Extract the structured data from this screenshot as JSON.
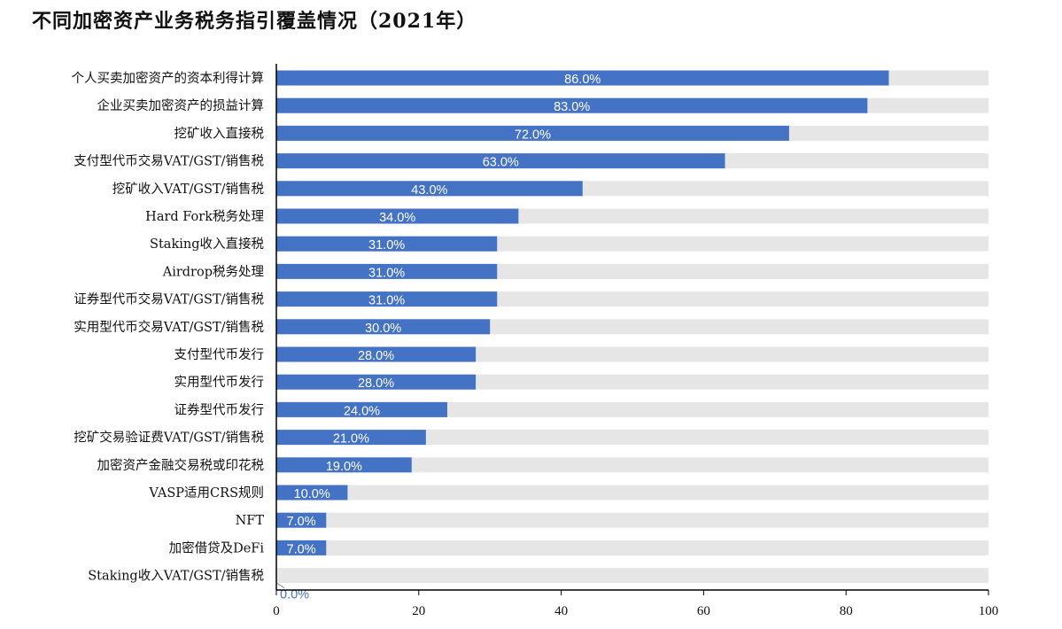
{
  "title": "不同加密资产业务税务指引覆盖情况（2021年）",
  "colors": {
    "bar": "#4472c4",
    "track": "#e6e6e6",
    "axis": "#000000",
    "label_inside": "#ffffff",
    "label_outside": "#4472c4"
  },
  "chart_data": {
    "type": "bar",
    "orientation": "horizontal",
    "title": "不同加密资产业务税务指引覆盖情况（2021年）",
    "xlabel": "",
    "ylabel": "",
    "xlim": [
      0,
      100
    ],
    "xticks": [
      0,
      20,
      40,
      60,
      80,
      100
    ],
    "grid": false,
    "legend": "none",
    "categories": [
      "个人买卖加密资产的资本利得计算",
      "企业买卖加密资产的损益计算",
      "挖矿收入直接税",
      "支付型代币交易VAT/GST/销售税",
      "挖矿收入VAT/GST/销售税",
      "Hard Fork税务处理",
      "Staking收入直接税",
      "Airdrop税务处理",
      "证券型代币交易VAT/GST/销售税",
      "实用型代币交易VAT/GST/销售税",
      "支付型代币发行",
      "实用型代币发行",
      "证券型代币发行",
      "挖矿交易验证费VAT/GST/销售税",
      "加密资产金融交易税或印花税",
      "VASP适用CRS规则",
      "NFT",
      "加密借贷及DeFi",
      "Staking收入VAT/GST/销售税"
    ],
    "values": [
      86,
      83,
      72,
      63,
      43,
      34,
      31,
      31,
      31,
      30,
      28,
      28,
      24,
      21,
      19,
      10,
      7,
      7,
      0
    ],
    "data_labels": [
      "86.0%",
      "83.0%",
      "72.0%",
      "63.0%",
      "43.0%",
      "34.0%",
      "31.0%",
      "31.0%",
      "31.0%",
      "30.0%",
      "28.0%",
      "28.0%",
      "24.0%",
      "21.0%",
      "19.0%",
      "10.0%",
      "7.0%",
      "7.0%",
      "0.0%"
    ]
  }
}
